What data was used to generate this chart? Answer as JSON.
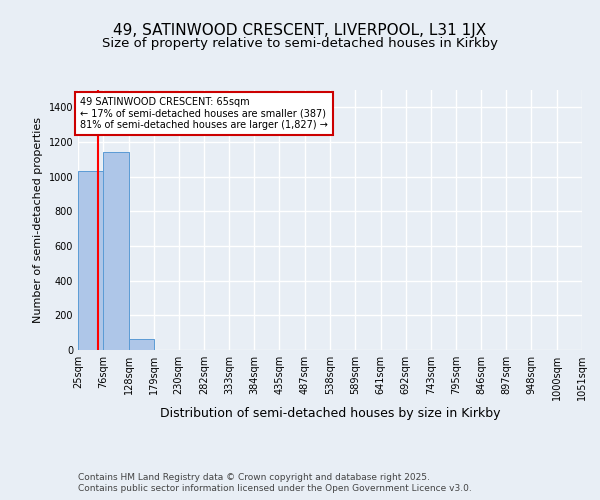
{
  "title": "49, SATINWOOD CRESCENT, LIVERPOOL, L31 1JX",
  "subtitle": "Size of property relative to semi-detached houses in Kirkby",
  "xlabel": "Distribution of semi-detached houses by size in Kirkby",
  "ylabel": "Number of semi-detached properties",
  "footer_line1": "Contains HM Land Registry data © Crown copyright and database right 2025.",
  "footer_line2": "Contains public sector information licensed under the Open Government Licence v3.0.",
  "bin_edges": [
    25,
    76,
    128,
    179,
    230,
    282,
    333,
    384,
    435,
    487,
    538,
    589,
    641,
    692,
    743,
    795,
    846,
    897,
    948,
    1000,
    1051
  ],
  "bin_labels": [
    "25sqm",
    "76sqm",
    "128sqm",
    "179sqm",
    "230sqm",
    "282sqm",
    "333sqm",
    "384sqm",
    "435sqm",
    "487sqm",
    "538sqm",
    "589sqm",
    "641sqm",
    "692sqm",
    "743sqm",
    "795sqm",
    "846sqm",
    "897sqm",
    "948sqm",
    "1000sqm",
    "1051sqm"
  ],
  "bar_values": [
    1035,
    1140,
    65,
    0,
    0,
    0,
    0,
    0,
    0,
    0,
    0,
    0,
    0,
    0,
    0,
    0,
    0,
    0,
    0,
    0
  ],
  "bar_color": "#aec6e8",
  "bar_edgecolor": "#5b9bd5",
  "red_line_x": 65,
  "annotation_title": "49 SATINWOOD CRESCENT: 65sqm",
  "annotation_line2": "← 17% of semi-detached houses are smaller (387)",
  "annotation_line3": "81% of semi-detached houses are larger (1,827) →",
  "annotation_box_color": "#ffffff",
  "annotation_box_edgecolor": "#cc0000",
  "ylim": [
    0,
    1500
  ],
  "yticks": [
    0,
    200,
    400,
    600,
    800,
    1000,
    1200,
    1400
  ],
  "background_color": "#e8eef5",
  "plot_background": "#e8eef5",
  "grid_color": "#ffffff",
  "title_fontsize": 11,
  "subtitle_fontsize": 9.5
}
